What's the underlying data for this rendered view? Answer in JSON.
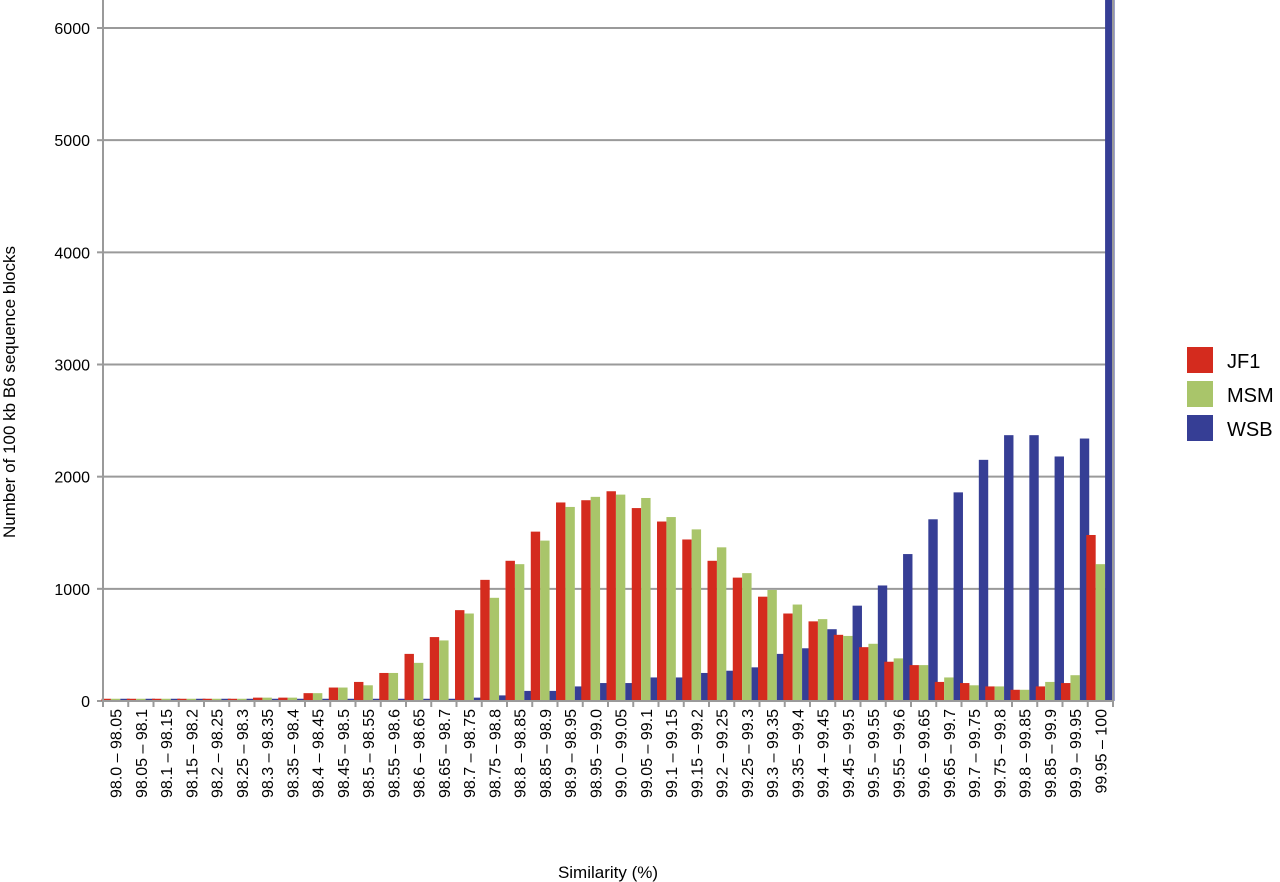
{
  "chart_data": {
    "type": "bar",
    "title": "",
    "xlabel": "Similarity (%)",
    "ylabel": "Number of 100 kb B6 sequence blocks",
    "ylim": [
      0,
      6300
    ],
    "yticks": [
      0,
      1000,
      2000,
      3000,
      4000,
      5000,
      6000
    ],
    "grid": true,
    "legend_position": "right",
    "categories": [
      "98.0 – 98.05",
      "98.05 – 98.1",
      "98.1 – 98.15",
      "98.15 – 98.2",
      "98.2 – 98.25",
      "98.25 – 98.3",
      "98.3 – 98.35",
      "98.35 – 98.4",
      "98.4 – 98.45",
      "98.45 – 98.5",
      "98.5 – 98.55",
      "98.55 – 98.6",
      "98.6 – 98.65",
      "98.65 – 98.7",
      "98.7 – 98.75",
      "98.75 – 98.8",
      "98.8 – 98.85",
      "98.85 – 98.9",
      "98.9 – 98.95",
      "98.95 – 99.0",
      "99.0 – 99.05",
      "99.05 – 99.1",
      "99.1 – 99.15",
      "99.15 – 99.2",
      "99.2 – 99.25",
      "99.25 – 99.3",
      "99.3 – 99.35",
      "99.35 – 99.4",
      "99.4 – 99.45",
      "99.45 – 99.5",
      "99.5 – 99.55",
      "99.55 – 99.6",
      "99.6 – 99.65",
      "99.65 – 99.7",
      "99.7 – 99.75",
      "99.75 – 99.8",
      "99.8 – 99.85",
      "99.85 – 99.9",
      "99.9 – 99.95",
      "99.95 – 100"
    ],
    "series": [
      {
        "name": "JF1",
        "color": "#d42b1e",
        "values": [
          20,
          20,
          20,
          20,
          20,
          20,
          30,
          30,
          70,
          120,
          170,
          250,
          420,
          570,
          810,
          1080,
          1250,
          1510,
          1770,
          1790,
          1870,
          1720,
          1600,
          1440,
          1250,
          1100,
          930,
          780,
          710,
          590,
          480,
          350,
          320,
          170,
          160,
          130,
          100,
          130,
          160,
          1480
        ]
      },
      {
        "name": "MSM",
        "color": "#a9c56a",
        "values": [
          20,
          20,
          20,
          20,
          20,
          20,
          30,
          30,
          70,
          120,
          140,
          250,
          340,
          540,
          780,
          920,
          1220,
          1430,
          1730,
          1820,
          1840,
          1810,
          1640,
          1530,
          1370,
          1140,
          990,
          860,
          730,
          580,
          510,
          380,
          320,
          210,
          140,
          130,
          100,
          170,
          230,
          1220
        ]
      },
      {
        "name": "WSB",
        "color": "#363e95",
        "values": [
          20,
          20,
          20,
          20,
          20,
          20,
          20,
          20,
          20,
          20,
          20,
          20,
          20,
          20,
          30,
          50,
          90,
          90,
          130,
          160,
          160,
          210,
          210,
          250,
          270,
          300,
          420,
          470,
          640,
          850,
          1030,
          1310,
          1620,
          1860,
          2150,
          2370,
          2370,
          2180,
          2340,
          6300
        ]
      }
    ]
  }
}
